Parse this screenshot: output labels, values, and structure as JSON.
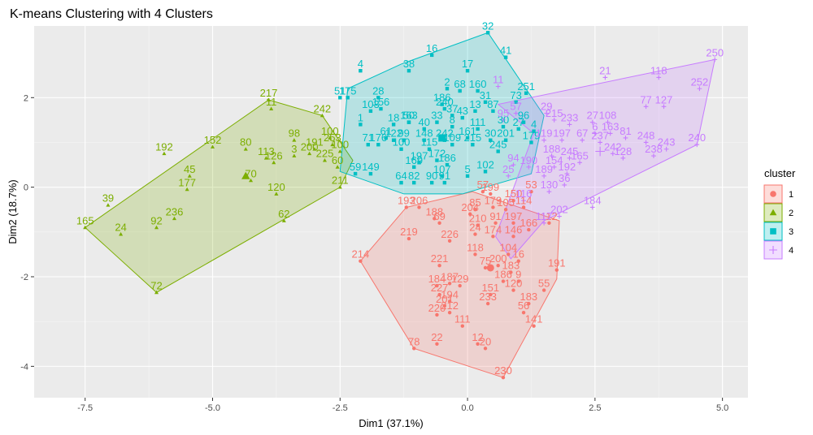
{
  "chart_data": {
    "type": "scatter",
    "title": "K-means Clustering with 4 Clusters",
    "xlabel": "Dim1 (37.1%)",
    "ylabel": "Dim2 (18.7%)",
    "xlim": [
      -8.5,
      5.5
    ],
    "ylim": [
      -4.7,
      3.6
    ],
    "x_ticks": [
      -7.5,
      -5.0,
      -2.5,
      0.0,
      2.5,
      5.0
    ],
    "x_tick_labels": [
      "-7.5",
      "-5.0",
      "-2.5",
      "0.0",
      "2.5",
      "5.0"
    ],
    "y_ticks": [
      -4,
      -2,
      0,
      2
    ],
    "y_tick_labels": [
      "-4",
      "-2",
      "0",
      "2"
    ],
    "grid": true,
    "legend": {
      "title": "cluster",
      "placement": "right"
    },
    "series": [
      {
        "name": "1",
        "color": "#F8766D",
        "shape": "circle",
        "center": [
          0.45,
          -1.8
        ],
        "hull": [
          [
            -2.1,
            -1.65
          ],
          [
            -1.05,
            -3.6
          ],
          [
            0.7,
            -4.25
          ],
          [
            1.75,
            -2.05
          ],
          [
            1.8,
            -0.75
          ],
          [
            0.1,
            -0.1
          ],
          [
            -1.2,
            -0.45
          ]
        ],
        "points": [
          [
            -2.1,
            -1.65,
            "214"
          ],
          [
            -1.05,
            -3.6,
            "78"
          ],
          [
            -0.6,
            -3.5,
            "22"
          ],
          [
            0.7,
            -4.25,
            "230"
          ],
          [
            0.35,
            -3.6,
            "20"
          ],
          [
            0.2,
            -3.5,
            "12"
          ],
          [
            -0.1,
            -3.1,
            "111"
          ],
          [
            1.3,
            -3.1,
            "141"
          ],
          [
            1.1,
            -2.8,
            "56"
          ],
          [
            0.4,
            -2.6,
            "233"
          ],
          [
            0.45,
            -2.4,
            "151"
          ],
          [
            1.2,
            -2.6,
            "183"
          ],
          [
            1.5,
            -2.3,
            "55"
          ],
          [
            1.75,
            -1.85,
            "191"
          ],
          [
            -0.45,
            -2.65,
            "201"
          ],
          [
            -0.6,
            -2.85,
            "220"
          ],
          [
            -0.35,
            -2.8,
            "212"
          ],
          [
            -0.55,
            -2.4,
            "227"
          ],
          [
            -0.35,
            -2.55,
            "194"
          ],
          [
            -0.6,
            -2.2,
            "184"
          ],
          [
            -0.35,
            -2.15,
            "187"
          ],
          [
            -0.15,
            -2.2,
            "129"
          ],
          [
            -0.55,
            -1.75,
            "221"
          ],
          [
            0.15,
            -1.5,
            "118"
          ],
          [
            -1.15,
            -1.15,
            "219"
          ],
          [
            -0.35,
            -1.2,
            "226"
          ],
          [
            -1.2,
            -0.45,
            "193"
          ],
          [
            -0.95,
            -0.45,
            "206"
          ],
          [
            -0.65,
            -0.7,
            "188"
          ],
          [
            -0.55,
            -0.8,
            "69"
          ],
          [
            0.3,
            -0.1,
            "57"
          ],
          [
            0.45,
            -0.15,
            "199"
          ],
          [
            0.15,
            -0.5,
            "85"
          ],
          [
            0.5,
            -0.45,
            "179"
          ],
          [
            0.75,
            -0.5,
            "105"
          ],
          [
            1.1,
            -0.45,
            "114"
          ],
          [
            0.05,
            -0.6,
            "204"
          ],
          [
            0.2,
            -0.85,
            "210"
          ],
          [
            0.55,
            -0.8,
            "91"
          ],
          [
            0.9,
            -0.8,
            "197"
          ],
          [
            0.15,
            -1.05,
            "24"
          ],
          [
            0.5,
            -1.1,
            "174"
          ],
          [
            0.9,
            -1.1,
            "146"
          ],
          [
            1.2,
            -0.95,
            "166"
          ],
          [
            1.6,
            -0.8,
            "112"
          ],
          [
            0.8,
            -1.5,
            "104"
          ],
          [
            1.0,
            -1.65,
            "16"
          ],
          [
            0.6,
            -1.75,
            "200"
          ],
          [
            0.85,
            -1.9,
            "183"
          ],
          [
            0.7,
            -2.1,
            "186"
          ],
          [
            1.0,
            -2.1,
            "9"
          ],
          [
            0.9,
            -2.3,
            "120"
          ],
          [
            1.25,
            -0.1,
            "53"
          ],
          [
            0.9,
            -0.3,
            "150"
          ],
          [
            0.35,
            -1.8,
            "75"
          ]
        ]
      },
      {
        "name": "2",
        "color": "#7CAE00",
        "shape": "triangle",
        "center": [
          -4.35,
          0.25
        ],
        "hull": [
          [
            -7.5,
            -0.9
          ],
          [
            -6.1,
            -2.35
          ],
          [
            -2.5,
            0.0
          ],
          [
            -2.25,
            0.6
          ],
          [
            -2.85,
            1.6
          ],
          [
            -3.9,
            1.95
          ]
        ],
        "points": [
          [
            -7.5,
            -0.9,
            "165"
          ],
          [
            -6.1,
            -2.35,
            "72"
          ],
          [
            -7.05,
            -0.4,
            "39"
          ],
          [
            -6.8,
            -1.05,
            "24"
          ],
          [
            -6.1,
            -0.9,
            "92"
          ],
          [
            -5.95,
            0.75,
            "192"
          ],
          [
            -5.75,
            -0.7,
            "236"
          ],
          [
            -5.5,
            -0.05,
            "177"
          ],
          [
            -5.45,
            0.25,
            "45"
          ],
          [
            -5.0,
            0.9,
            "152"
          ],
          [
            -4.35,
            0.85,
            "80"
          ],
          [
            -4.25,
            0.15,
            "70"
          ],
          [
            -3.9,
            1.95,
            "217"
          ],
          [
            -3.85,
            1.75,
            "11"
          ],
          [
            -3.95,
            0.65,
            "113"
          ],
          [
            -3.8,
            0.55,
            "126"
          ],
          [
            -3.75,
            -0.15,
            "120"
          ],
          [
            -3.6,
            -0.75,
            "62"
          ],
          [
            -3.4,
            1.05,
            "98"
          ],
          [
            -3.4,
            0.7,
            "3"
          ],
          [
            -3.1,
            0.75,
            "200"
          ],
          [
            -3.0,
            0.85,
            "191"
          ],
          [
            -2.85,
            1.6,
            "242"
          ],
          [
            -2.7,
            1.1,
            "100"
          ],
          [
            -2.8,
            0.6,
            "225"
          ],
          [
            -2.65,
            0.95,
            "253"
          ],
          [
            -2.5,
            0.8,
            "100"
          ],
          [
            -2.55,
            0.45,
            "60"
          ],
          [
            -2.5,
            0.0,
            "211"
          ]
        ]
      },
      {
        "name": "3",
        "color": "#00BFC4",
        "shape": "square",
        "center": [
          -0.5,
          1.1
        ],
        "hull": [
          [
            -2.5,
            0.35
          ],
          [
            -1.25,
            -0.15
          ],
          [
            -0.1,
            -0.15
          ],
          [
            1.25,
            0.3
          ],
          [
            1.5,
            1.6
          ],
          [
            0.4,
            3.45
          ],
          [
            -1.3,
            2.75
          ],
          [
            -2.35,
            2.2
          ]
        ],
        "points": [
          [
            0.4,
            3.45,
            "32"
          ],
          [
            -0.7,
            2.95,
            "16"
          ],
          [
            0.75,
            2.9,
            "41"
          ],
          [
            -1.15,
            2.6,
            "38"
          ],
          [
            0.0,
            2.6,
            "17"
          ],
          [
            -2.1,
            2.6,
            "4"
          ],
          [
            -0.4,
            2.2,
            "2"
          ],
          [
            -0.15,
            2.15,
            "68"
          ],
          [
            0.2,
            2.15,
            "160"
          ],
          [
            -2.5,
            2.0,
            "51"
          ],
          [
            -2.35,
            2.0,
            "175"
          ],
          [
            -1.75,
            2.0,
            "28"
          ],
          [
            -1.9,
            1.7,
            "103"
          ],
          [
            -1.7,
            1.75,
            "156"
          ],
          [
            -0.5,
            1.85,
            "186"
          ],
          [
            0.35,
            1.9,
            "31"
          ],
          [
            0.5,
            1.7,
            "87"
          ],
          [
            0.95,
            1.9,
            "73"
          ],
          [
            1.15,
            2.1,
            "251"
          ],
          [
            -1.15,
            1.45,
            "50"
          ],
          [
            -0.6,
            1.45,
            "33"
          ],
          [
            -0.3,
            1.6,
            "37"
          ],
          [
            -0.45,
            1.75,
            "240"
          ],
          [
            0.15,
            1.7,
            "13"
          ],
          [
            -0.1,
            1.55,
            "43"
          ],
          [
            -2.1,
            1.4,
            "1"
          ],
          [
            -1.45,
            1.4,
            "18"
          ],
          [
            -1.15,
            1.45,
            "163"
          ],
          [
            -0.85,
            1.3,
            "40"
          ],
          [
            -0.3,
            1.35,
            "8"
          ],
          [
            0.2,
            1.3,
            "111"
          ],
          [
            0.7,
            1.35,
            "30"
          ],
          [
            1.0,
            1.3,
            "27"
          ],
          [
            1.3,
            1.25,
            "4"
          ],
          [
            -1.6,
            1.1,
            "61"
          ],
          [
            -1.45,
            1.05,
            "122"
          ],
          [
            -1.25,
            1.05,
            "99"
          ],
          [
            -0.85,
            1.05,
            "148"
          ],
          [
            -0.45,
            1.05,
            "242"
          ],
          [
            0.0,
            1.1,
            "161"
          ],
          [
            0.45,
            1.05,
            "30"
          ],
          [
            0.75,
            1.05,
            "201"
          ],
          [
            1.25,
            1.0,
            "179"
          ],
          [
            -1.95,
            0.95,
            "71"
          ],
          [
            -1.75,
            0.95,
            "176"
          ],
          [
            -1.3,
            0.85,
            "100"
          ],
          [
            -0.75,
            0.85,
            "115"
          ],
          [
            -0.3,
            0.95,
            "109"
          ],
          [
            0.1,
            0.95,
            "215"
          ],
          [
            0.6,
            0.8,
            "245"
          ],
          [
            -0.95,
            0.55,
            "197"
          ],
          [
            -0.6,
            0.6,
            "172"
          ],
          [
            -0.4,
            0.5,
            "186"
          ],
          [
            -2.2,
            0.3,
            "59"
          ],
          [
            -1.9,
            0.3,
            "149"
          ],
          [
            -1.05,
            0.45,
            "169"
          ],
          [
            -0.5,
            0.25,
            "107"
          ],
          [
            0.0,
            0.25,
            "5"
          ],
          [
            0.35,
            0.35,
            "102"
          ],
          [
            -1.3,
            0.1,
            "64"
          ],
          [
            -1.05,
            0.1,
            "82"
          ],
          [
            -0.7,
            0.1,
            "90"
          ],
          [
            -0.45,
            0.1,
            "91"
          ],
          [
            1.1,
            1.45,
            "96"
          ]
        ]
      },
      {
        "name": "4",
        "color": "#C77CFF",
        "shape": "plus",
        "center": [
          2.6,
          0.8
        ],
        "hull": [
          [
            0.6,
            1.85
          ],
          [
            4.85,
            2.85
          ],
          [
            4.5,
            0.95
          ],
          [
            1.5,
            -0.75
          ],
          [
            0.85,
            -1.6
          ],
          [
            0.55,
            -1.1
          ],
          [
            1.3,
            1.2
          ]
        ],
        "points": [
          [
            4.85,
            2.85,
            "250"
          ],
          [
            4.5,
            0.95,
            "240"
          ],
          [
            4.55,
            2.2,
            "252"
          ],
          [
            3.75,
            2.45,
            "118"
          ],
          [
            2.7,
            2.45,
            "21"
          ],
          [
            3.5,
            1.8,
            "77"
          ],
          [
            3.85,
            1.8,
            "127"
          ],
          [
            0.6,
            2.25,
            "11"
          ],
          [
            1.55,
            1.65,
            "29"
          ],
          [
            1.7,
            1.5,
            "215"
          ],
          [
            2.0,
            1.4,
            "233"
          ],
          [
            2.45,
            1.45,
            "27"
          ],
          [
            2.75,
            1.45,
            "108"
          ],
          [
            2.5,
            1.2,
            "6"
          ],
          [
            2.8,
            1.2,
            "163"
          ],
          [
            3.1,
            1.1,
            "81"
          ],
          [
            1.5,
            1.05,
            "119"
          ],
          [
            1.85,
            1.05,
            "197"
          ],
          [
            2.25,
            1.05,
            "67"
          ],
          [
            2.6,
            1.0,
            "237"
          ],
          [
            3.5,
            1.0,
            "248"
          ],
          [
            3.9,
            0.85,
            "243"
          ],
          [
            3.65,
            0.7,
            "238"
          ],
          [
            2.85,
            0.75,
            "242"
          ],
          [
            3.05,
            0.65,
            "128"
          ],
          [
            1.65,
            0.7,
            "188"
          ],
          [
            2.0,
            0.65,
            "245"
          ],
          [
            2.2,
            0.55,
            "165"
          ],
          [
            0.9,
            0.5,
            "94"
          ],
          [
            1.2,
            0.45,
            "190"
          ],
          [
            1.7,
            0.45,
            "154"
          ],
          [
            1.95,
            0.3,
            "192"
          ],
          [
            0.8,
            0.25,
            "25"
          ],
          [
            1.5,
            0.25,
            "189"
          ],
          [
            1.9,
            0.05,
            "36"
          ],
          [
            1.6,
            -0.1,
            "130"
          ],
          [
            1.1,
            -0.3,
            "116"
          ],
          [
            2.45,
            -0.45,
            "184"
          ],
          [
            1.8,
            -0.65,
            "202"
          ],
          [
            1.5,
            -0.8,
            "117"
          ],
          [
            0.95,
            1.65,
            "57"
          ],
          [
            0.7,
            1.5,
            "95"
          ]
        ]
      }
    ]
  }
}
